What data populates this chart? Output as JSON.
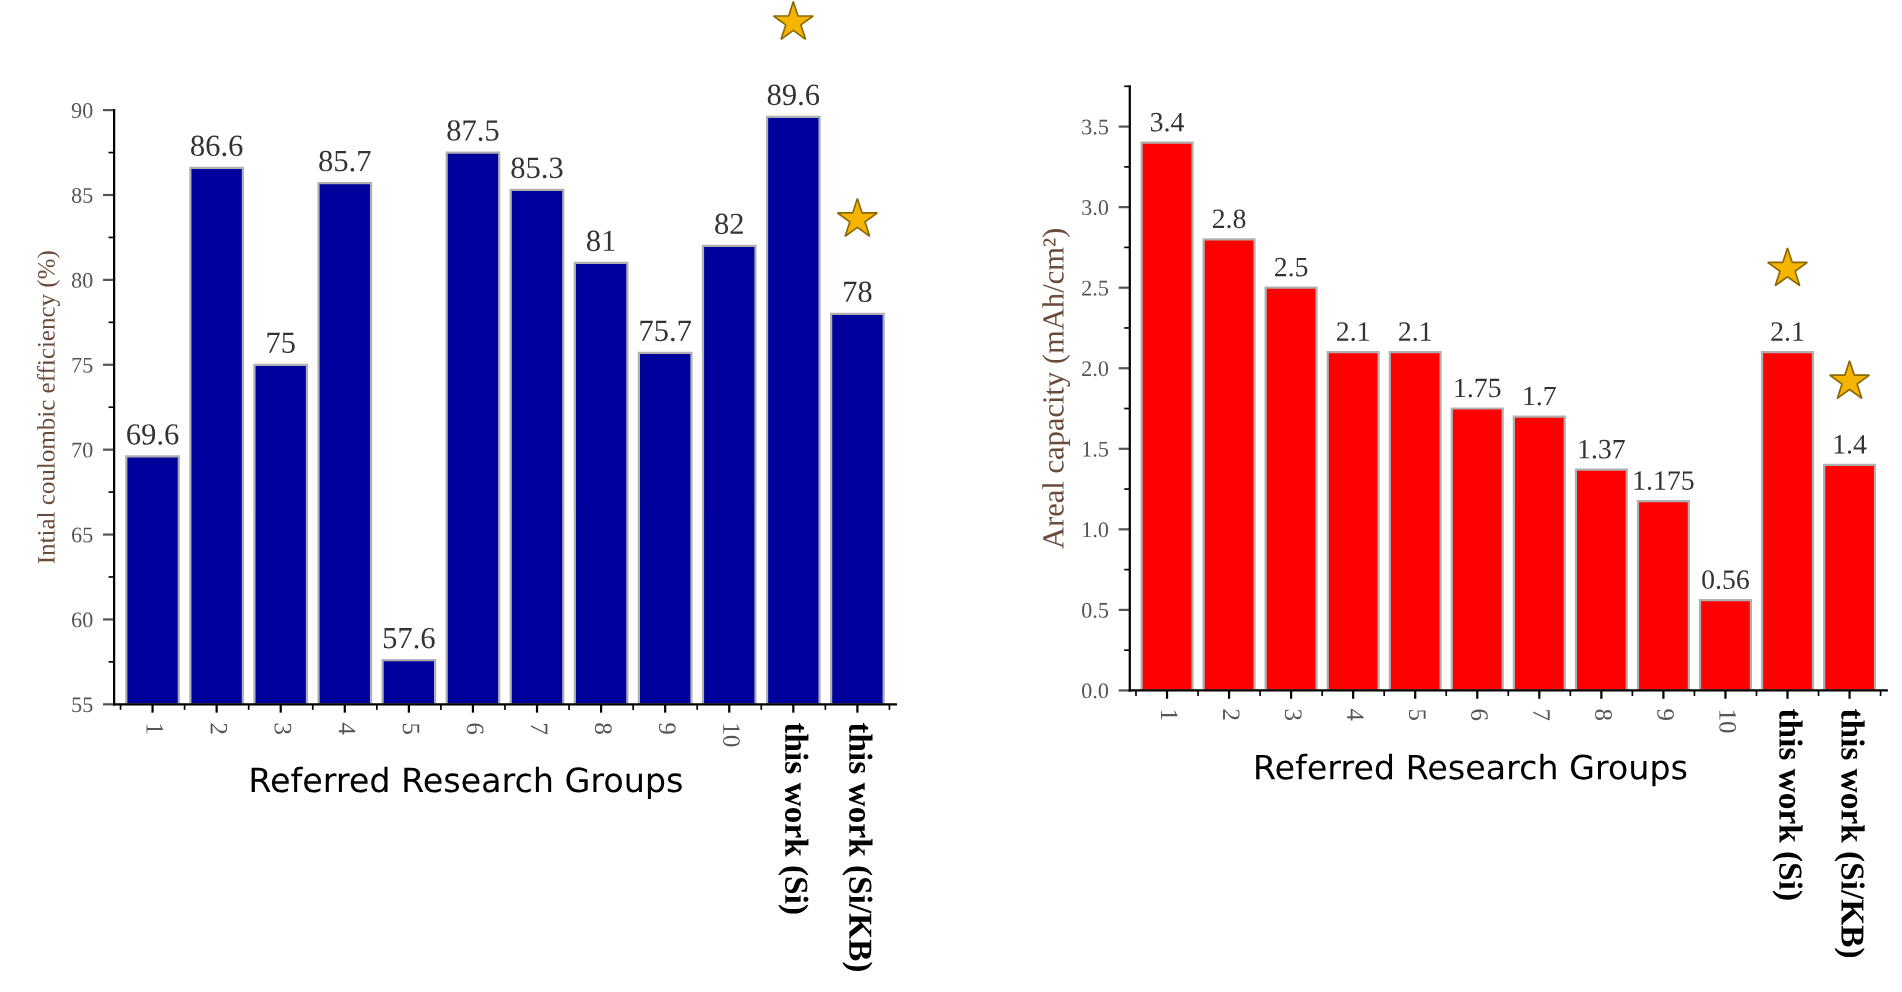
{
  "chart_data": [
    {
      "type": "bar",
      "ylabel": "Intial coulombic efficiency (%)",
      "xlabel": "Referred Research Groups",
      "categories": [
        "1",
        "2",
        "3",
        "4",
        "5",
        "6",
        "7",
        "8",
        "9",
        "10",
        "this work (Si)",
        "this work (Si/KB)"
      ],
      "values": [
        69.6,
        86.6,
        75,
        85.7,
        57.6,
        87.5,
        85.3,
        81,
        75.7,
        82,
        89.6,
        78
      ],
      "color": "#00009c",
      "ylim": [
        55,
        90
      ],
      "yticks": [
        55,
        60,
        65,
        70,
        75,
        80,
        85,
        90
      ],
      "data_labels": true,
      "grid": false,
      "legend": false
    },
    {
      "type": "bar",
      "ylabel": "Areal capacity (mAh/cm²)",
      "xlabel": "Referred Research Groups",
      "categories": [
        "1",
        "2",
        "3",
        "4",
        "5",
        "6",
        "7",
        "8",
        "9",
        "10",
        "this work (Si)",
        "this work (Si/KB)"
      ],
      "values": [
        3.4,
        2.8,
        2.5,
        2.1,
        2.1,
        1.75,
        1.7,
        1.37,
        1.175,
        0.56,
        2.1,
        1.4
      ],
      "color": "#ff0000",
      "ylim": [
        0,
        3.75
      ],
      "yticks": [
        {
          "value": 0,
          "label": "0.0"
        },
        {
          "value": 0.5,
          "label": "0.5"
        },
        {
          "value": 1,
          "label": "1.0"
        },
        {
          "value": 1.5,
          "label": "1.5"
        },
        {
          "value": 2,
          "label": "2.0"
        },
        {
          "value": 2.5,
          "label": "2.5"
        },
        {
          "value": 3,
          "label": "3.0"
        },
        {
          "value": 3.5,
          "label": "3.5"
        }
      ],
      "data_labels": true,
      "grid": false,
      "legend": false
    }
  ]
}
